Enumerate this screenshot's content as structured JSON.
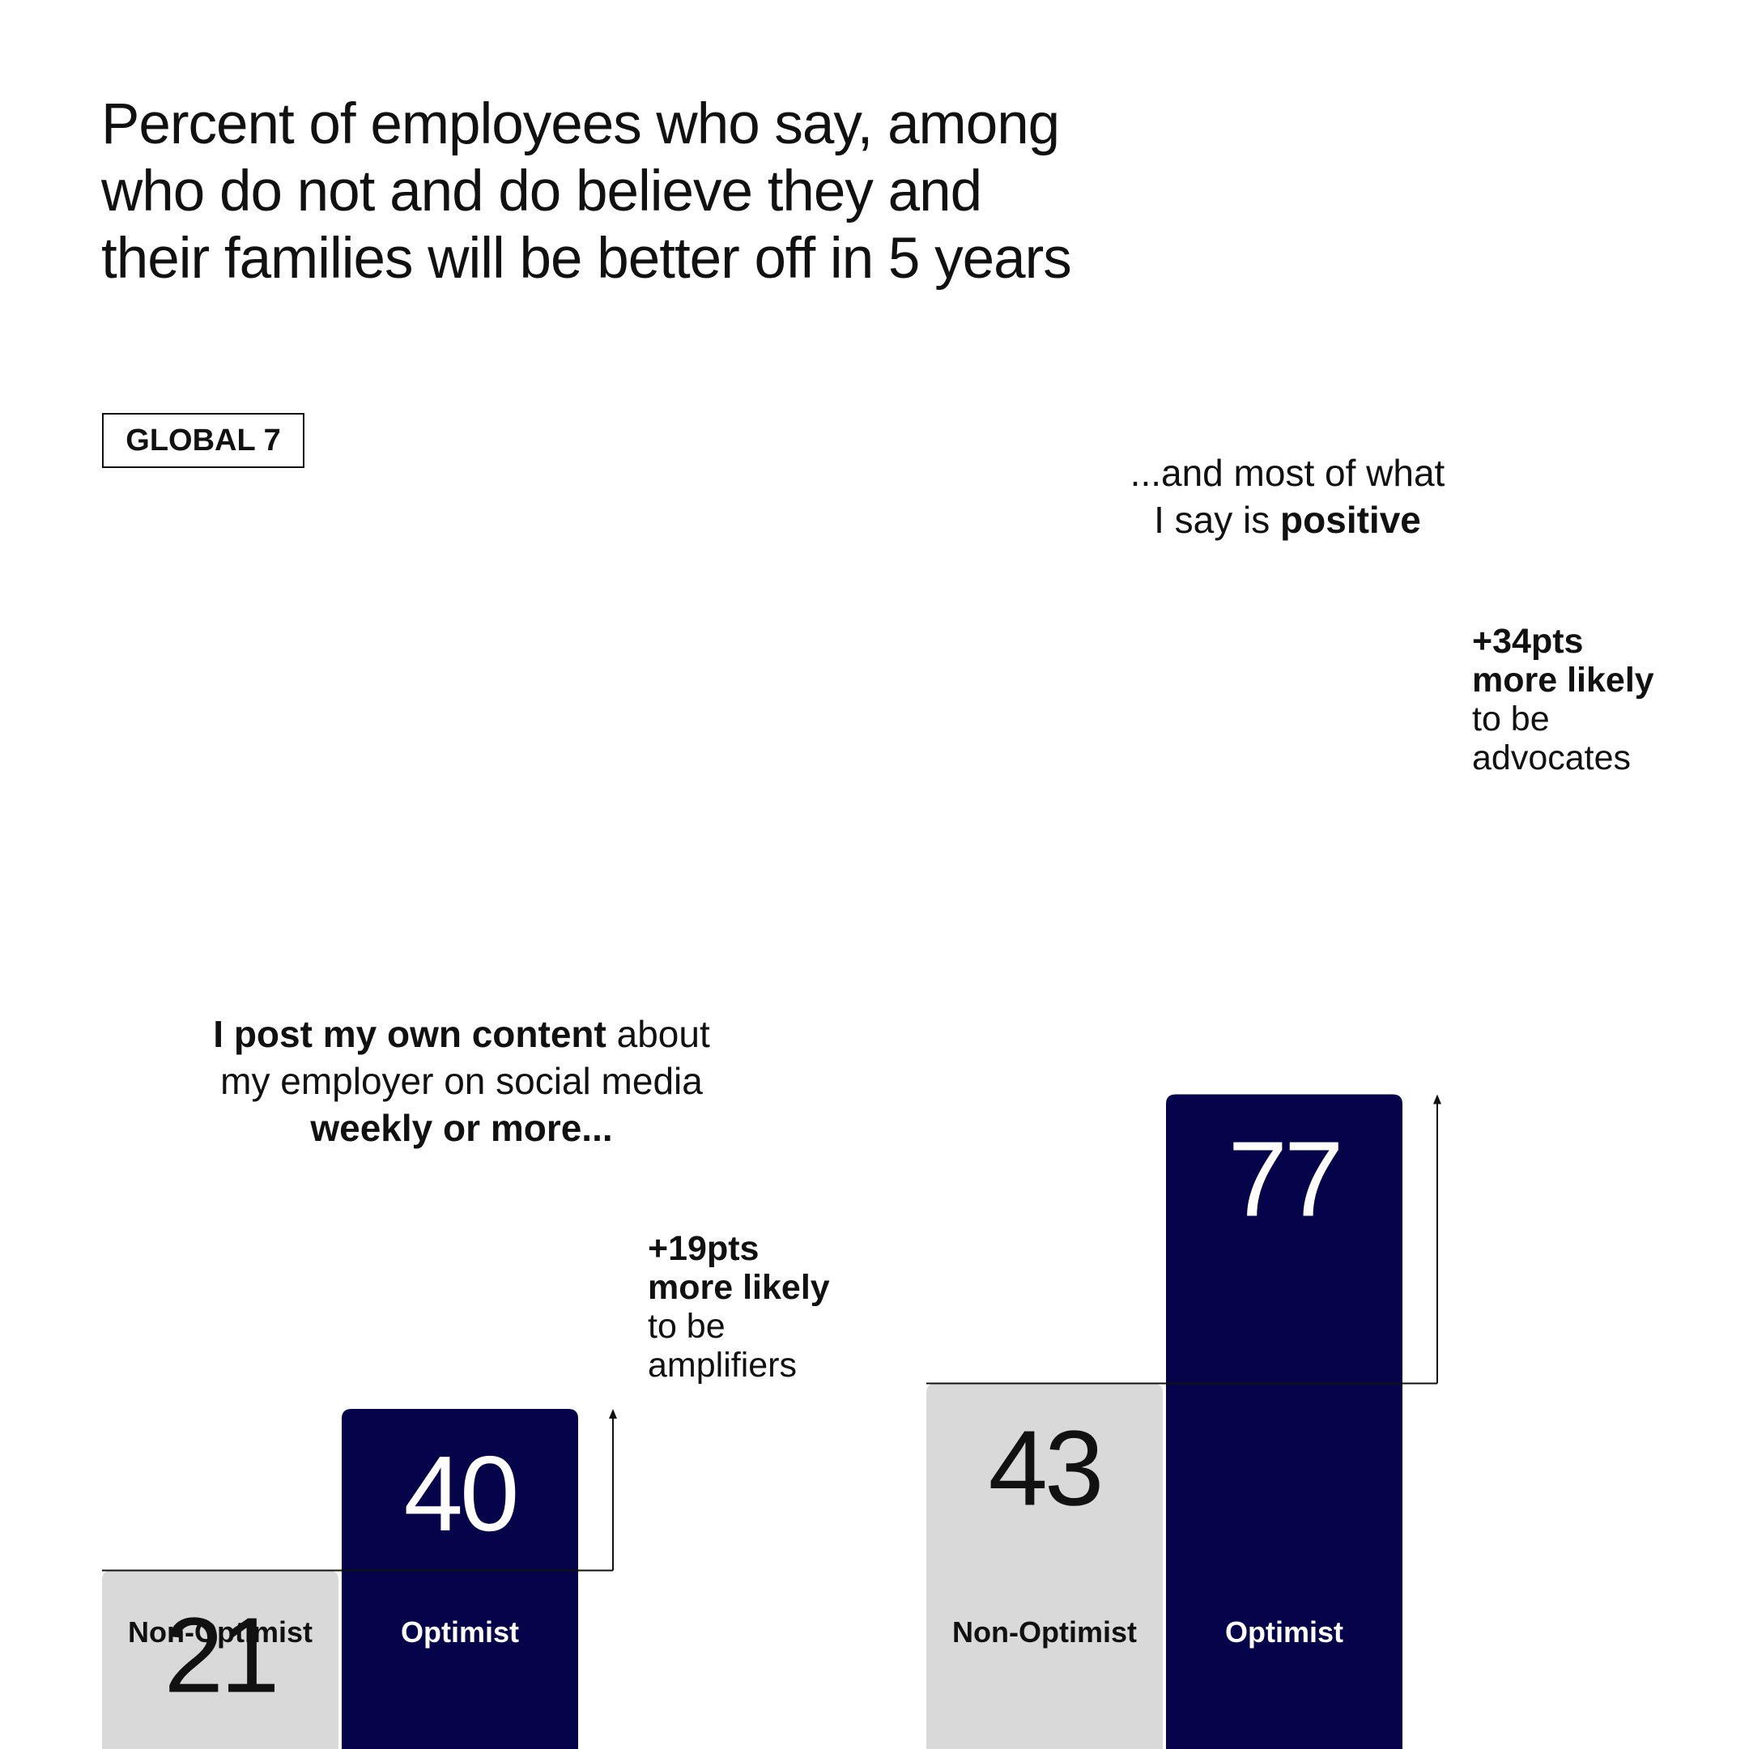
{
  "title_lines": [
    "Percent of employees who say, among",
    "who do not and do believe they and",
    "their families will be better off in 5 years"
  ],
  "badge": "GLOBAL 7",
  "colors": {
    "non_optimist": "#d9d9d9",
    "optimist": "#05034a",
    "ink": "#111111"
  },
  "annotations": {
    "left": {
      "caption": [
        [
          {
            "t": "I post my own content",
            "b": true
          },
          {
            "t": " about",
            "b": false
          }
        ],
        [
          {
            "t": "my employer on social media",
            "b": false
          }
        ],
        [
          {
            "t": "weekly or more...",
            "b": true
          }
        ]
      ],
      "note": {
        "delta": "+19pts",
        "more": "more likely",
        "to_be": "to be",
        "role": "amplifiers"
      }
    },
    "right": {
      "caption": [
        [
          {
            "t": "...and most of what",
            "b": false
          }
        ],
        [
          {
            "t": "I say is ",
            "b": false
          },
          {
            "t": "positive",
            "b": true
          }
        ]
      ],
      "note": {
        "delta": "+34pts",
        "more": "more likely",
        "to_be": "to be",
        "role": "advocates"
      }
    }
  },
  "chart_data": [
    {
      "type": "bar",
      "categories": [
        "Non-Optimist",
        "Optimist"
      ],
      "values": [
        21,
        40
      ],
      "delta": 19
    },
    {
      "type": "bar",
      "categories": [
        "Non-Optimist",
        "Optimist"
      ],
      "values": [
        43,
        77
      ],
      "delta": 34
    }
  ]
}
